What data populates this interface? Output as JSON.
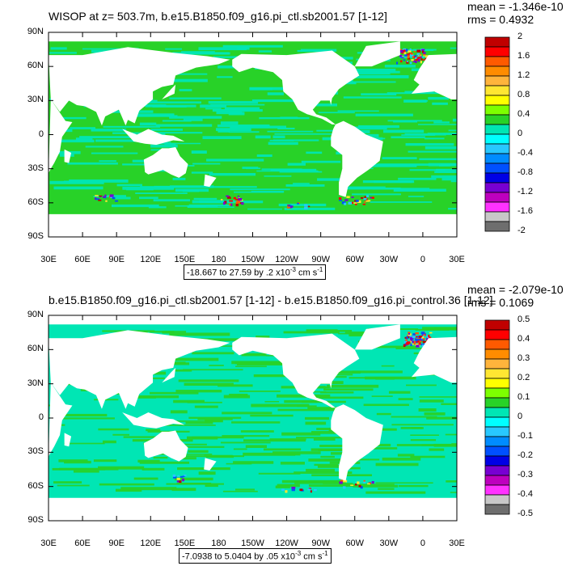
{
  "panels": [
    {
      "title": "WISOP at z= 503.7m, b.e15.B1850.f09_g16.pi_ctl.sb2001.57 [1-12]",
      "mean": "mean = -1.346e-10",
      "rms": "rms = 0.4932",
      "range_main": "-18.667 to 27.59 by .2 x10",
      "range_exp": "-3",
      "range_unit": " cm s",
      "range_unit_exp": "-1",
      "colorbar": {
        "labels": [
          "2",
          "1.6",
          "1.2",
          "0.8",
          "0.4",
          "0",
          "-0.4",
          "-0.8",
          "-1.2",
          "-1.6",
          "-2"
        ],
        "colors": [
          "#c00000",
          "#ff0000",
          "#ff5a00",
          "#ff8c00",
          "#ffb43c",
          "#ffe632",
          "#ffff00",
          "#7dff00",
          "#28d228",
          "#00e6b4",
          "#00ffff",
          "#28c8ff",
          "#008cff",
          "#0050ff",
          "#0000e6",
          "#7800d2",
          "#be00be",
          "#ff32ff",
          "#c8c8c8",
          "#6e6e6e"
        ]
      }
    },
    {
      "title": "b.e15.B1850.f09_g16.pi_ctl.sb2001.57 [1-12] - b.e15.B1850.f09_g16.pi_control.36 [1-12]",
      "mean": "mean = -2.079e-10",
      "rms": "rms = 0.1069",
      "range_main": "-7.0938 to 5.0404 by .05 x10",
      "range_exp": "-3",
      "range_unit": " cm s",
      "range_unit_exp": "-1",
      "colorbar": {
        "labels": [
          "0.5",
          "0.4",
          "0.3",
          "0.2",
          "0.1",
          "0",
          "-0.1",
          "-0.2",
          "-0.3",
          "-0.4",
          "-0.5"
        ],
        "colors": [
          "#c00000",
          "#ff0000",
          "#ff5a00",
          "#ff8c00",
          "#ffb43c",
          "#ffe632",
          "#ffff00",
          "#7dff00",
          "#28d228",
          "#00e6b4",
          "#00ffff",
          "#28c8ff",
          "#008cff",
          "#0050ff",
          "#0000e6",
          "#7800d2",
          "#be00be",
          "#ff32ff",
          "#c8c8c8",
          "#6e6e6e"
        ]
      }
    }
  ],
  "axes": {
    "lat_labels": [
      "90N",
      "60N",
      "30N",
      "0",
      "30S",
      "60S",
      "90S"
    ],
    "lon_labels": [
      "30E",
      "60E",
      "90E",
      "120E",
      "150E",
      "180",
      "150W",
      "120W",
      "90W",
      "60W",
      "30W",
      "0",
      "30E"
    ]
  },
  "field_colors": {
    "ocean_main": "#28d228",
    "ocean_alt": "#00e6b4",
    "land": "#ffffff"
  }
}
